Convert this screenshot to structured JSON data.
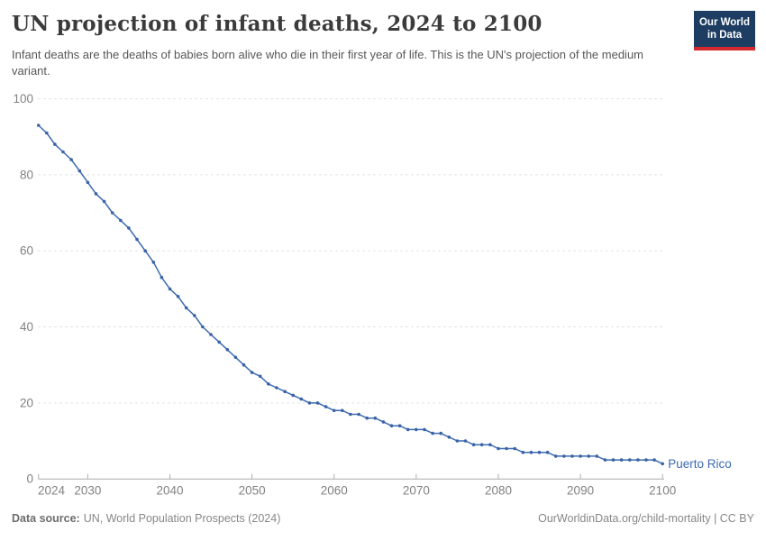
{
  "header": {
    "title": "UN projection of infant deaths, 2024 to 2100",
    "subtitle": "Infant deaths are the deaths of babies born alive who die in their first year of life. This is the UN's projection of the medium variant.",
    "logo": {
      "line1": "Our World",
      "line2": "in Data"
    }
  },
  "chart_data": {
    "type": "line",
    "title": "UN projection of infant deaths, 2024 to 2100",
    "xlabel": "",
    "ylabel": "",
    "xlim": [
      2024,
      2100
    ],
    "ylim": [
      0,
      100
    ],
    "xticks": [
      2024,
      2030,
      2040,
      2050,
      2060,
      2070,
      2080,
      2090,
      2100
    ],
    "yticks": [
      0,
      20,
      40,
      60,
      80,
      100
    ],
    "grid": "horizontal-dashed",
    "legend": "end-of-line-label",
    "x": [
      2024,
      2025,
      2026,
      2027,
      2028,
      2029,
      2030,
      2031,
      2032,
      2033,
      2034,
      2035,
      2036,
      2037,
      2038,
      2039,
      2040,
      2041,
      2042,
      2043,
      2044,
      2045,
      2046,
      2047,
      2048,
      2049,
      2050,
      2051,
      2052,
      2053,
      2054,
      2055,
      2056,
      2057,
      2058,
      2059,
      2060,
      2061,
      2062,
      2063,
      2064,
      2065,
      2066,
      2067,
      2068,
      2069,
      2070,
      2071,
      2072,
      2073,
      2074,
      2075,
      2076,
      2077,
      2078,
      2079,
      2080,
      2081,
      2082,
      2083,
      2084,
      2085,
      2086,
      2087,
      2088,
      2089,
      2090,
      2091,
      2092,
      2093,
      2094,
      2095,
      2096,
      2097,
      2098,
      2099,
      2100
    ],
    "series": [
      {
        "name": "Puerto Rico",
        "values": [
          93,
          91,
          88,
          86,
          84,
          81,
          78,
          75,
          73,
          70,
          68,
          66,
          63,
          60,
          57,
          53,
          50,
          48,
          45,
          43,
          40,
          38,
          36,
          34,
          32,
          30,
          28,
          27,
          25,
          24,
          23,
          22,
          21,
          20,
          20,
          19,
          18,
          18,
          17,
          17,
          16,
          16,
          15,
          14,
          14,
          13,
          13,
          13,
          12,
          12,
          11,
          10,
          10,
          9,
          9,
          9,
          8,
          8,
          8,
          7,
          7,
          7,
          7,
          6,
          6,
          6,
          6,
          6,
          6,
          5,
          5,
          5,
          5,
          5,
          5,
          5,
          4
        ]
      }
    ]
  },
  "colors": {
    "line": "#3e6bb1",
    "marker": "#3a62a7",
    "entity_label": "#3d6bb5",
    "gridline": "#e3e3e3",
    "axis": "#ababab",
    "tick_label": "#828282",
    "logo_navy": "#1d3d63",
    "logo_red": "#d2282e"
  },
  "footer": {
    "source_label": "Data source:",
    "source_text": "UN, World Population Prospects (2024)",
    "credit": "OurWorldinData.org/child-mortality | CC BY"
  }
}
